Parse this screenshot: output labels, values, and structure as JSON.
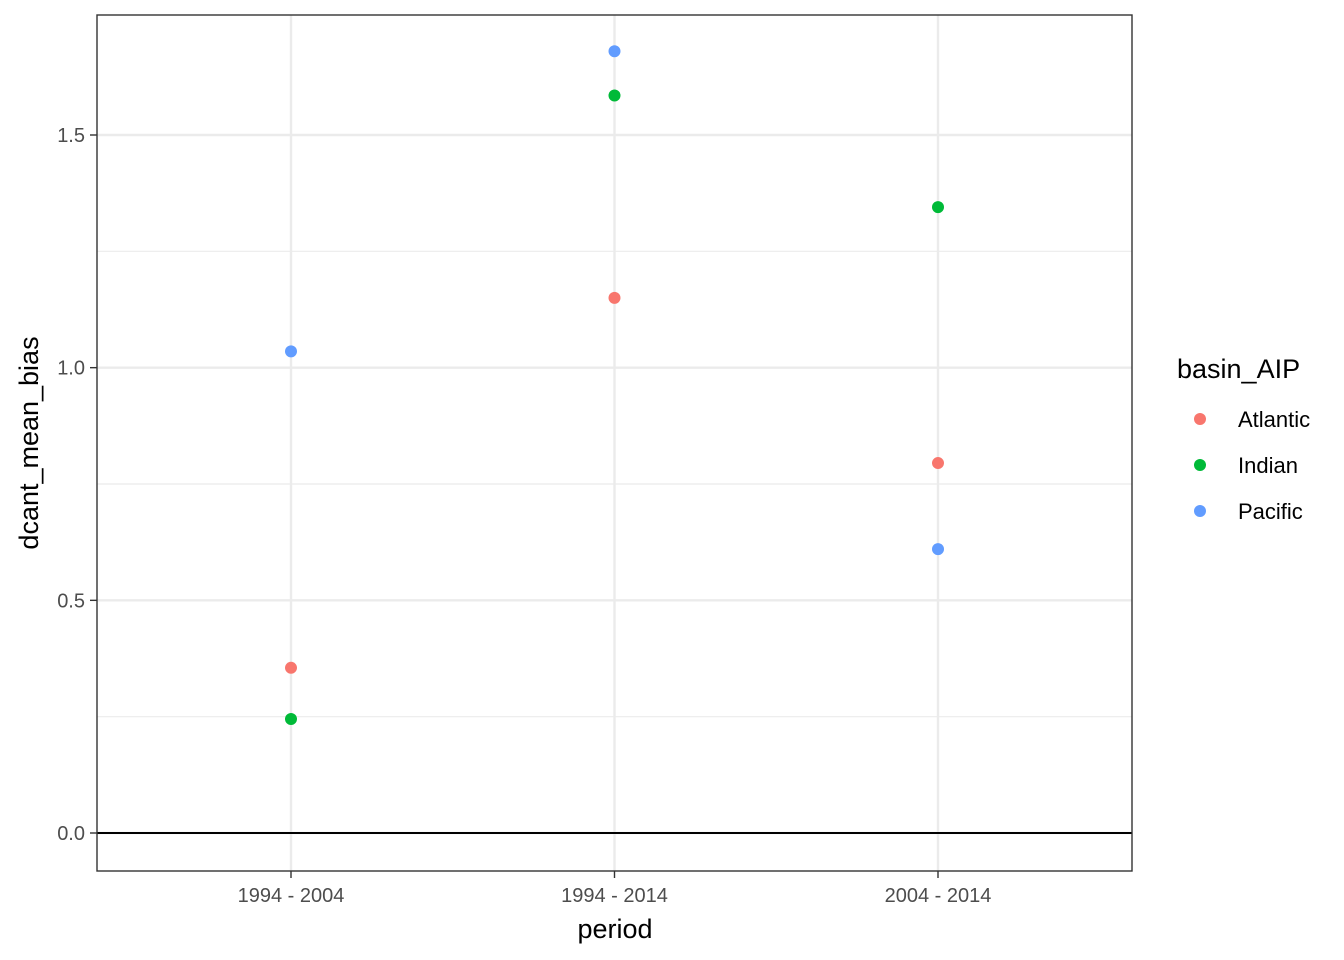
{
  "chart_data": {
    "type": "scatter",
    "xlabel": "period",
    "ylabel": "dcant_mean_bias",
    "categories": [
      "1994 - 2004",
      "1994 - 2014",
      "2004 - 2014"
    ],
    "ylim": [
      -0.08,
      1.76
    ],
    "y_ticks": [
      0.0,
      0.5,
      1.0,
      1.5
    ],
    "y_tick_labels": [
      "0.0",
      "0.5",
      "1.0",
      "1.5"
    ],
    "reference_line_y": 0,
    "grid": true,
    "legend": {
      "title": "basin_AIP",
      "position": "right"
    },
    "series": [
      {
        "name": "Atlantic",
        "color": "#F8766D",
        "values": [
          0.355,
          1.15,
          0.795
        ]
      },
      {
        "name": "Indian",
        "color": "#00BA38",
        "values": [
          0.245,
          1.585,
          1.345
        ]
      },
      {
        "name": "Pacific",
        "color": "#619CFF",
        "values": [
          1.035,
          1.68,
          0.61
        ]
      }
    ]
  }
}
